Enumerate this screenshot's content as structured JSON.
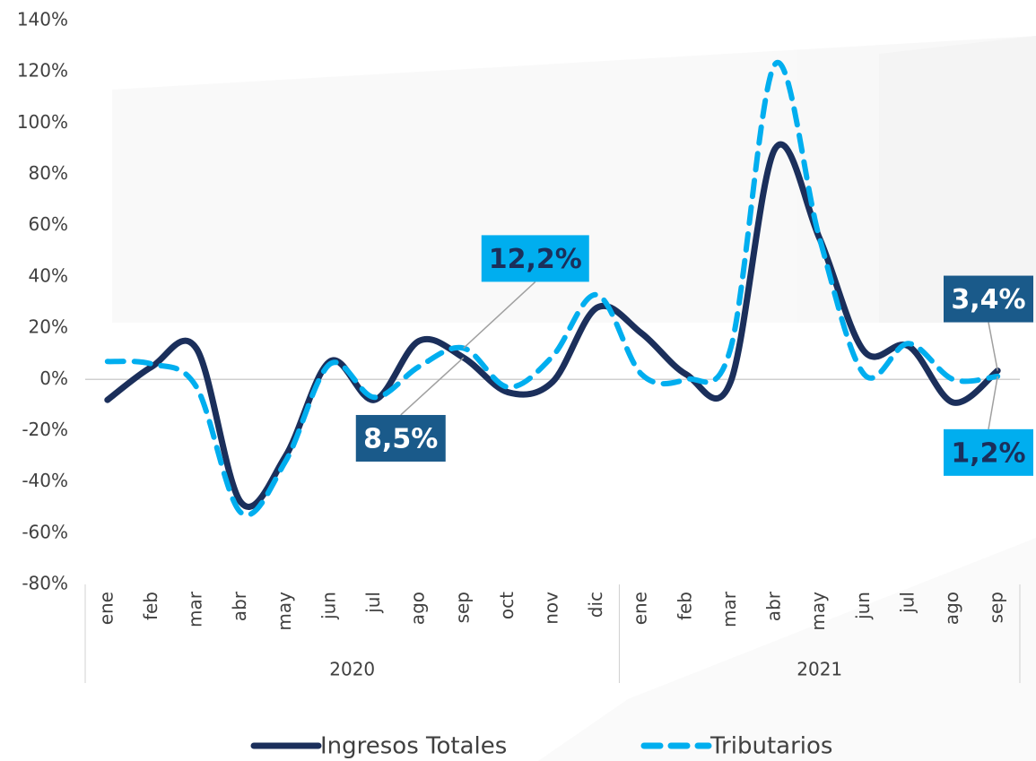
{
  "chart_data": {
    "type": "line",
    "category_groups": [
      {
        "label": "2020",
        "months": [
          "ene",
          "feb",
          "mar",
          "abr",
          "may",
          "jun",
          "jul",
          "ago",
          "sep",
          "oct",
          "nov",
          "dic"
        ]
      },
      {
        "label": "2021",
        "months": [
          "ene",
          "feb",
          "mar",
          "abr",
          "may",
          "jun",
          "jul",
          "ago",
          "sep"
        ]
      }
    ],
    "series": [
      {
        "name": "Ingresos Totales",
        "color": "#1b2f5b",
        "dash": false,
        "values": [
          -8,
          5,
          12,
          -48,
          -30,
          7,
          -8,
          15,
          8.5,
          -5,
          -1,
          28,
          18,
          2,
          -1,
          90,
          55,
          11,
          13,
          -9,
          3.4
        ],
        "value_labels": [
          null,
          null,
          null,
          null,
          null,
          null,
          null,
          null,
          "8,5%",
          null,
          null,
          null,
          null,
          null,
          null,
          null,
          null,
          null,
          null,
          null,
          "3,4%"
        ],
        "label_color": "#1a5a8a"
      },
      {
        "name": "Tributarios",
        "color": "#00aeef",
        "dash": true,
        "values": [
          7,
          6,
          -3,
          -52,
          -32,
          6,
          -7,
          5,
          12.2,
          -3,
          9,
          33,
          2,
          0,
          12,
          123,
          55,
          2,
          14,
          0,
          1.2
        ],
        "value_labels": [
          null,
          null,
          null,
          null,
          null,
          null,
          null,
          null,
          "12,2%",
          null,
          null,
          null,
          null,
          null,
          null,
          null,
          null,
          null,
          null,
          null,
          "1,2%"
        ],
        "label_color": "#00aeef"
      }
    ],
    "ylim": [
      -80,
      140
    ],
    "yticks": [
      {
        "value": -80,
        "label": "-80%"
      },
      {
        "value": -60,
        "label": "-60%"
      },
      {
        "value": -40,
        "label": "-40%"
      },
      {
        "value": -20,
        "label": "-20%"
      },
      {
        "value": 0,
        "label": "0%"
      },
      {
        "value": 20,
        "label": "20%"
      },
      {
        "value": 40,
        "label": "40%"
      },
      {
        "value": 60,
        "label": "60%"
      },
      {
        "value": 80,
        "label": "80%"
      },
      {
        "value": 100,
        "label": "100%"
      },
      {
        "value": 120,
        "label": "120%"
      },
      {
        "value": 140,
        "label": "140%"
      }
    ],
    "legend": "bottom"
  }
}
